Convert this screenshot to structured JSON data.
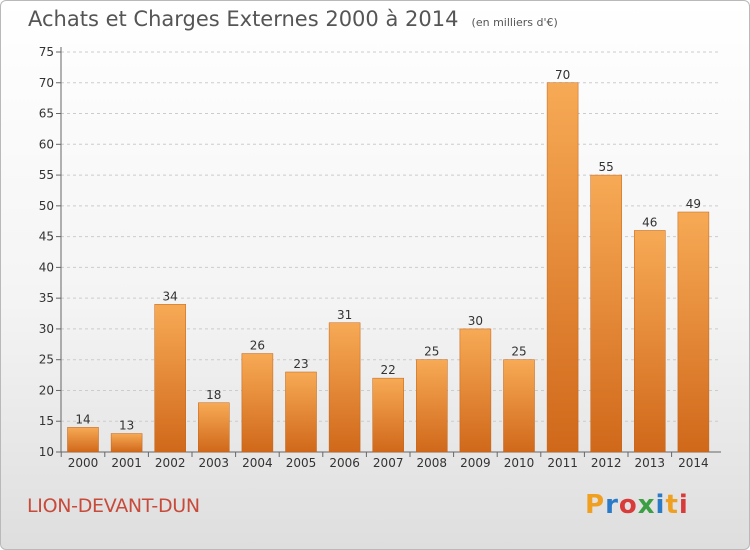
{
  "title": "Achats et Charges Externes 2000 à 2014",
  "unit_note": "(en milliers d'€)",
  "commune": "LION-DEVANT-DUN",
  "brand": {
    "letters": [
      "P",
      "r",
      "o",
      "x",
      "i",
      "t",
      "i"
    ],
    "colors": [
      "#f0a020",
      "#2a7ac8",
      "#d93a3a",
      "#3aa043",
      "#2a7ac8",
      "#f0a020",
      "#d93a3a"
    ]
  },
  "colors": {
    "bar_light": "#f7aa55",
    "bar_dark": "#d0681a",
    "axis_text": "#333333",
    "grid": "#cccccc"
  },
  "chart_data": {
    "type": "bar",
    "categories": [
      "2000",
      "2001",
      "2002",
      "2003",
      "2004",
      "2005",
      "2006",
      "2007",
      "2008",
      "2009",
      "2010",
      "2011",
      "2012",
      "2013",
      "2014"
    ],
    "values": [
      14,
      13,
      34,
      18,
      26,
      23,
      31,
      22,
      25,
      30,
      25,
      70,
      55,
      46,
      49
    ],
    "ylim": [
      10,
      75
    ],
    "yticks": [
      10,
      15,
      20,
      25,
      30,
      35,
      40,
      45,
      50,
      55,
      60,
      65,
      70,
      75
    ],
    "grid": "horizontal dashed"
  }
}
